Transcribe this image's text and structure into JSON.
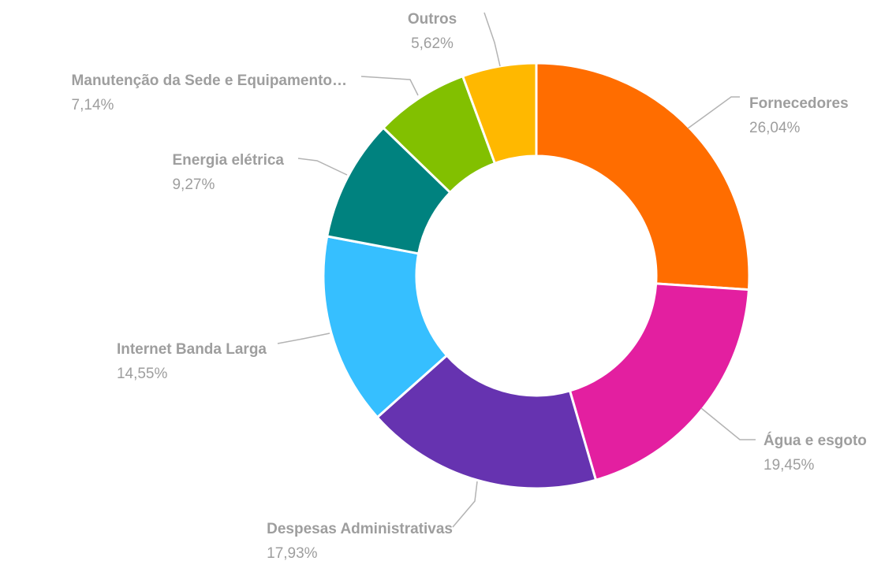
{
  "chart_data": {
    "type": "pie",
    "variant": "donut",
    "title": "",
    "legend": "none",
    "slices": [
      {
        "label": "Fornecedores",
        "value": 26.04,
        "value_label": "26,04%",
        "color": "#ff6d00"
      },
      {
        "label": "Água e esgoto",
        "value": 19.45,
        "value_label": "19,45%",
        "color": "#e31fa0"
      },
      {
        "label": "Despesas Administrativas",
        "value": 17.93,
        "value_label": "17,93%",
        "color": "#6633b0"
      },
      {
        "label": "Internet Banda Larga",
        "value": 14.55,
        "value_label": "14,55%",
        "color": "#36bfff"
      },
      {
        "label": "Energia elétrica",
        "value": 9.27,
        "value_label": "9,27%",
        "color": "#00827f"
      },
      {
        "label": "Manutenção da Sede e Equipamento…",
        "value": 7.14,
        "value_label": "7,14%",
        "color": "#82c000"
      },
      {
        "label": "Outros",
        "value": 5.62,
        "value_label": "5,62%",
        "color": "#ffb800"
      }
    ]
  }
}
